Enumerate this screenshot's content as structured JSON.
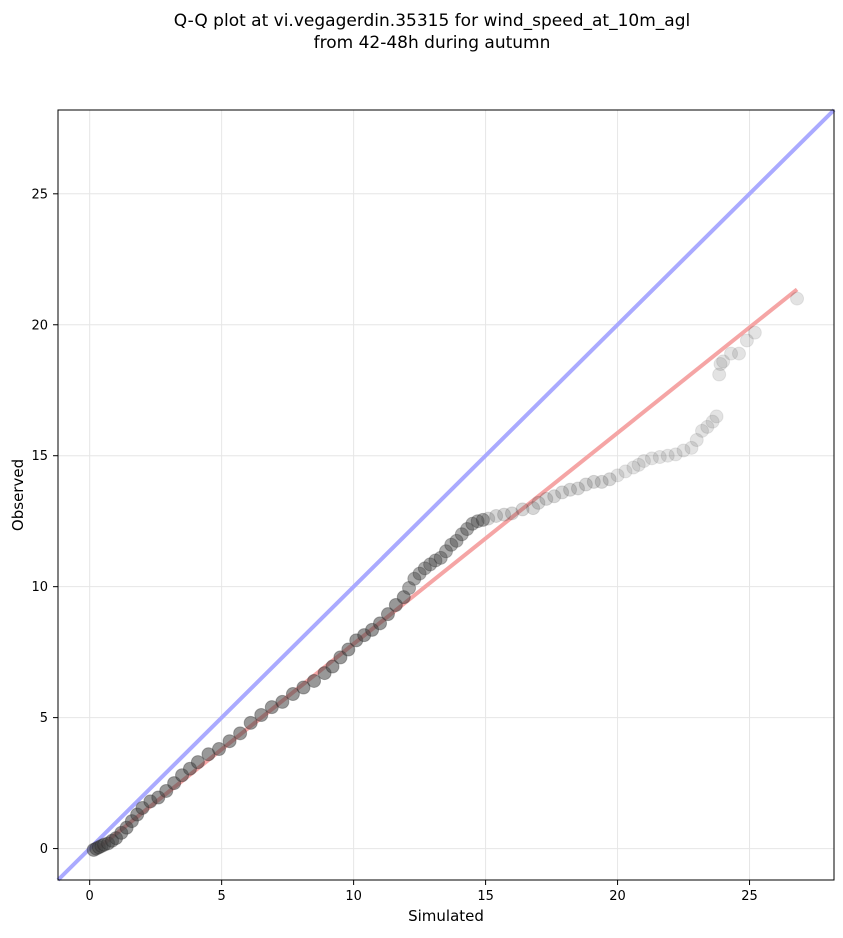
{
  "chart_data": {
    "type": "scatter",
    "title_line1": "Q-Q plot at vi.vegagerdin.35315 for wind_speed_at_10m_agl",
    "title_line2": "from 42-48h during autumn",
    "xlabel": "Simulated",
    "ylabel": "Observed",
    "xlim": [
      -1.2,
      28.2
    ],
    "ylim": [
      -1.2,
      28.2
    ],
    "xticks": [
      0,
      5,
      10,
      15,
      20,
      25
    ],
    "yticks": [
      0,
      5,
      10,
      15,
      20,
      25
    ],
    "grid": true,
    "reference_line": {
      "x": [
        -1.2,
        28.2
      ],
      "y": [
        -1.2,
        28.2
      ],
      "color": "#aaaaff"
    },
    "fit_line": {
      "x": [
        0.3,
        26.8
      ],
      "y": [
        0.0,
        21.35
      ],
      "color": "#f5a5a5"
    },
    "quantiles": {
      "x": [
        0.15,
        0.25,
        0.35,
        0.45,
        0.55,
        0.7,
        0.85,
        1.0,
        1.2,
        1.4,
        1.6,
        1.8,
        2.0,
        2.3,
        2.6,
        2.9,
        3.2,
        3.5,
        3.8,
        4.1,
        4.5,
        4.9,
        5.3,
        5.7,
        6.1,
        6.5,
        6.9,
        7.3,
        7.7,
        8.1,
        8.5,
        8.9,
        9.2,
        9.5,
        9.8,
        10.1,
        10.4,
        10.7,
        11.0,
        11.3,
        11.6,
        11.9,
        12.1,
        12.3,
        12.5,
        12.7,
        12.9,
        13.1,
        13.3,
        13.5,
        13.7,
        13.9,
        14.1,
        14.3,
        14.5,
        14.7,
        14.9,
        15.1,
        15.4,
        15.7,
        16.0,
        16.4,
        16.8,
        17.0,
        17.3,
        17.6,
        17.9,
        18.2,
        18.5,
        18.8,
        19.1,
        19.4,
        19.7,
        20.0,
        20.3,
        20.6,
        20.8,
        21.0,
        21.3,
        21.6,
        21.9,
        22.2,
        22.5,
        22.8,
        23.0,
        23.2,
        23.4,
        23.6,
        23.75,
        23.85,
        23.9,
        24.0,
        24.3,
        24.6,
        24.9,
        25.2,
        26.8
      ],
      "y": [
        -0.05,
        0.0,
        0.05,
        0.1,
        0.15,
        0.2,
        0.3,
        0.4,
        0.6,
        0.8,
        1.05,
        1.3,
        1.55,
        1.8,
        1.95,
        2.2,
        2.5,
        2.8,
        3.05,
        3.3,
        3.6,
        3.8,
        4.1,
        4.4,
        4.8,
        5.1,
        5.4,
        5.6,
        5.9,
        6.15,
        6.4,
        6.7,
        6.95,
        7.3,
        7.6,
        7.95,
        8.15,
        8.35,
        8.6,
        8.95,
        9.3,
        9.6,
        9.95,
        10.3,
        10.5,
        10.7,
        10.85,
        11.0,
        11.1,
        11.35,
        11.6,
        11.75,
        12.0,
        12.2,
        12.4,
        12.5,
        12.55,
        12.6,
        12.7,
        12.75,
        12.8,
        12.95,
        13.0,
        13.2,
        13.35,
        13.45,
        13.6,
        13.7,
        13.75,
        13.9,
        14.0,
        14.0,
        14.1,
        14.25,
        14.4,
        14.55,
        14.65,
        14.8,
        14.9,
        14.95,
        15.0,
        15.05,
        15.2,
        15.3,
        15.6,
        15.95,
        16.1,
        16.3,
        16.5,
        18.1,
        18.5,
        18.6,
        18.9,
        18.9,
        19.4,
        19.7,
        21.0
      ]
    }
  }
}
